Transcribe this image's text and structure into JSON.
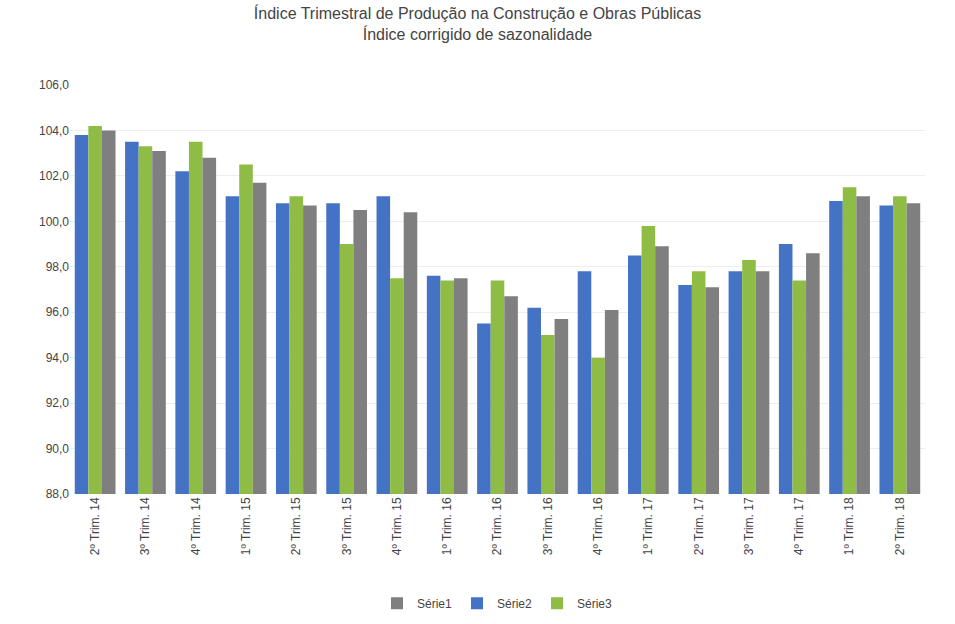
{
  "chart_data": {
    "type": "bar",
    "title": "Índice Trimestral de Produção na Construção e Obras Públicas",
    "subtitle": "Índice corrigido de sazonalidade",
    "categories": [
      "2º Trim. 14",
      "3º Trim. 14",
      "4º Trim. 14",
      "1º Trim. 15",
      "2º Trim. 15",
      "3º Trim. 15",
      "4º Trim. 15",
      "1º Trim. 16",
      "2º Trim. 16",
      "3º Trim. 16",
      "4º Trim. 16",
      "1º Trim. 17",
      "2º Trim. 17",
      "3º Trim. 17",
      "4º Trim. 17",
      "1º Trim. 18",
      "2º Trim. 18"
    ],
    "series": [
      {
        "name": "Série2",
        "color": "#4472C4",
        "values": [
          103.8,
          103.5,
          102.2,
          101.1,
          100.8,
          100.8,
          101.1,
          97.6,
          95.5,
          96.2,
          97.8,
          98.5,
          97.2,
          97.8,
          99.0,
          100.9,
          100.7
        ]
      },
      {
        "name": "Série3",
        "color": "#8FBC45",
        "values": [
          104.2,
          103.3,
          103.5,
          102.5,
          101.1,
          99.0,
          97.5,
          97.4,
          97.4,
          95.0,
          94.0,
          99.8,
          97.8,
          98.3,
          97.4,
          101.5,
          101.1
        ]
      },
      {
        "name": "Série1",
        "color": "#7F7F7F",
        "values": [
          104.0,
          103.1,
          102.8,
          101.7,
          100.7,
          100.5,
          100.4,
          97.5,
          96.7,
          95.7,
          96.1,
          98.9,
          97.1,
          97.8,
          98.6,
          101.1,
          100.8
        ]
      }
    ],
    "ylim": [
      88.0,
      106.0
    ],
    "yticks": [
      {
        "value": 88,
        "label": "88,0"
      },
      {
        "value": 90,
        "label": "90,0"
      },
      {
        "value": 92,
        "label": "92,0"
      },
      {
        "value": 94,
        "label": "94,0"
      },
      {
        "value": 96,
        "label": "96,0"
      },
      {
        "value": 98,
        "label": "98,0"
      },
      {
        "value": 100,
        "label": "100,0"
      },
      {
        "value": 102,
        "label": "102,0"
      },
      {
        "value": 104,
        "label": "104,0"
      },
      {
        "value": 106,
        "label": "106,0"
      }
    ],
    "grid": true,
    "legend": "bottom"
  }
}
